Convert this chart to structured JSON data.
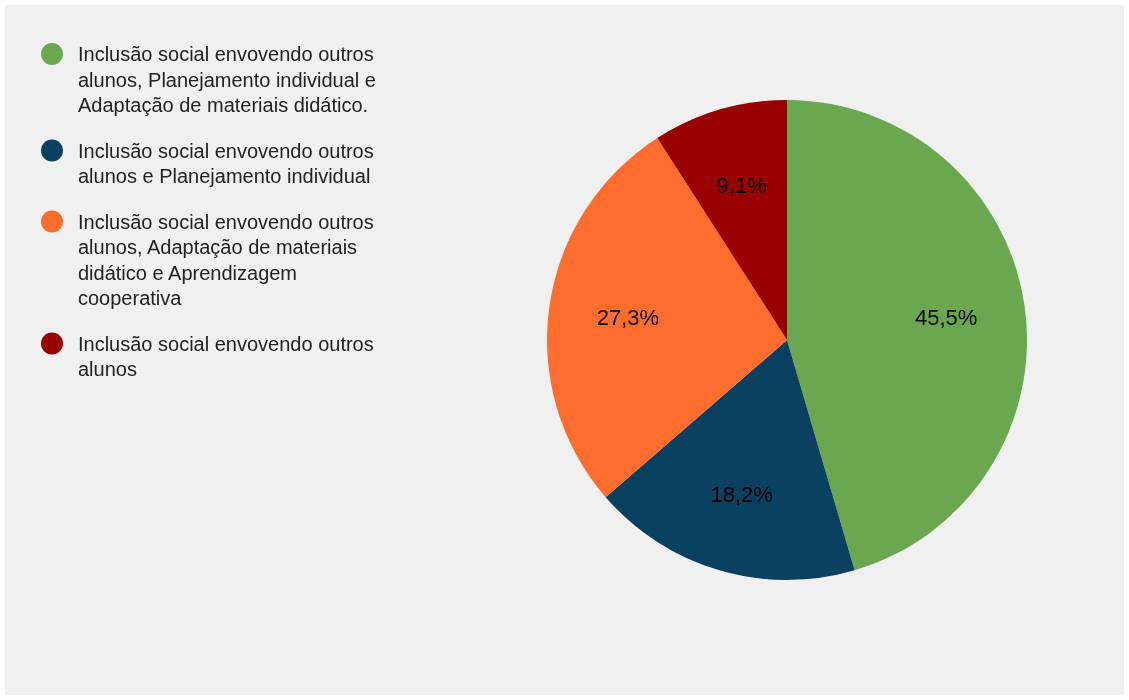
{
  "chart_data": {
    "type": "pie",
    "categories": [
      "Inclusão social envovendo outros alunos, Planejamento individual e Adaptação de materiais didático.",
      "Inclusão social envovendo outros alunos e Planejamento individual",
      "Inclusão social envovendo outros alunos, Adaptação de materiais didático e Aprendizagem cooperativa",
      "Inclusão social envovendo outros alunos"
    ],
    "values": [
      45.5,
      18.2,
      27.3,
      9.1
    ],
    "value_labels": [
      "45,5%",
      "18,2%",
      "27,3%",
      "9,1%"
    ],
    "colors": [
      "#6aa84f",
      "#0b4160",
      "#ff6d2e",
      "#990000"
    ],
    "legend": "left"
  }
}
